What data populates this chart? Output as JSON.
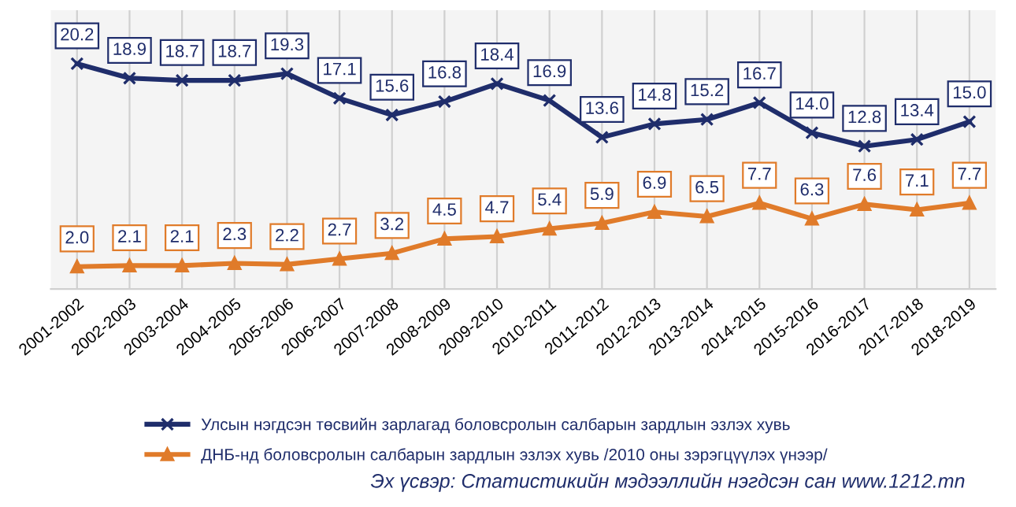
{
  "chart_data": {
    "type": "line",
    "categories": [
      "2001-2002",
      "2002-2003",
      "2003-2004",
      "2004-2005",
      "2005-2006",
      "2006-2007",
      "2007-2008",
      "2008-2009",
      "2009-2010",
      "2010-2011",
      "2011-2012",
      "2012-2013",
      "2013-2014",
      "2014-2015",
      "2015-2016",
      "2016-2017",
      "2017-2018",
      "2018-2019"
    ],
    "series": [
      {
        "name": "Улсын нэгдсэн төсвийн зарлагад боловсролын салбарын зардлын эзлэх хувь",
        "color": "#1f2d6b",
        "marker": "cross",
        "values": [
          20.2,
          18.9,
          18.7,
          18.7,
          19.3,
          17.1,
          15.6,
          16.8,
          18.4,
          16.9,
          13.6,
          14.8,
          15.2,
          16.7,
          14.0,
          12.8,
          13.4,
          15.0
        ],
        "value_labels": [
          "20.2",
          "18.9",
          "18.7",
          "18.7",
          "19.3",
          "17.1",
          "15.6",
          "16.8",
          "18.4",
          "16.9",
          "13.6",
          "14.8",
          "15.2",
          "16.7",
          "14.0",
          "12.8",
          "13.4",
          "15.0"
        ]
      },
      {
        "name": "ДНБ-нд боловсролын салбарын зардлын эзлэх хувь /2010 оны зэрэгцүүлэх үнээр/",
        "color": "#e07b2a",
        "marker": "triangle",
        "values": [
          2.0,
          2.1,
          2.1,
          2.3,
          2.2,
          2.7,
          3.2,
          4.5,
          4.7,
          5.4,
          5.9,
          6.9,
          6.5,
          7.7,
          6.3,
          7.6,
          7.1,
          7.7
        ],
        "value_labels": [
          "2.0",
          "2.1",
          "2.1",
          "2.3",
          "2.2",
          "2.7",
          "3.2",
          "4.5",
          "4.7",
          "5.4",
          "5.9",
          "6.9",
          "6.5",
          "7.7",
          "6.3",
          "7.6",
          "7.1",
          "7.7"
        ]
      }
    ],
    "ylim": [
      0,
      25
    ],
    "grid": "x",
    "legend": "bottom",
    "annotations": [
      "Эх үсвэр: Статистикийн мэдээллийн нэгдсэн сан www.1212.mn"
    ]
  }
}
